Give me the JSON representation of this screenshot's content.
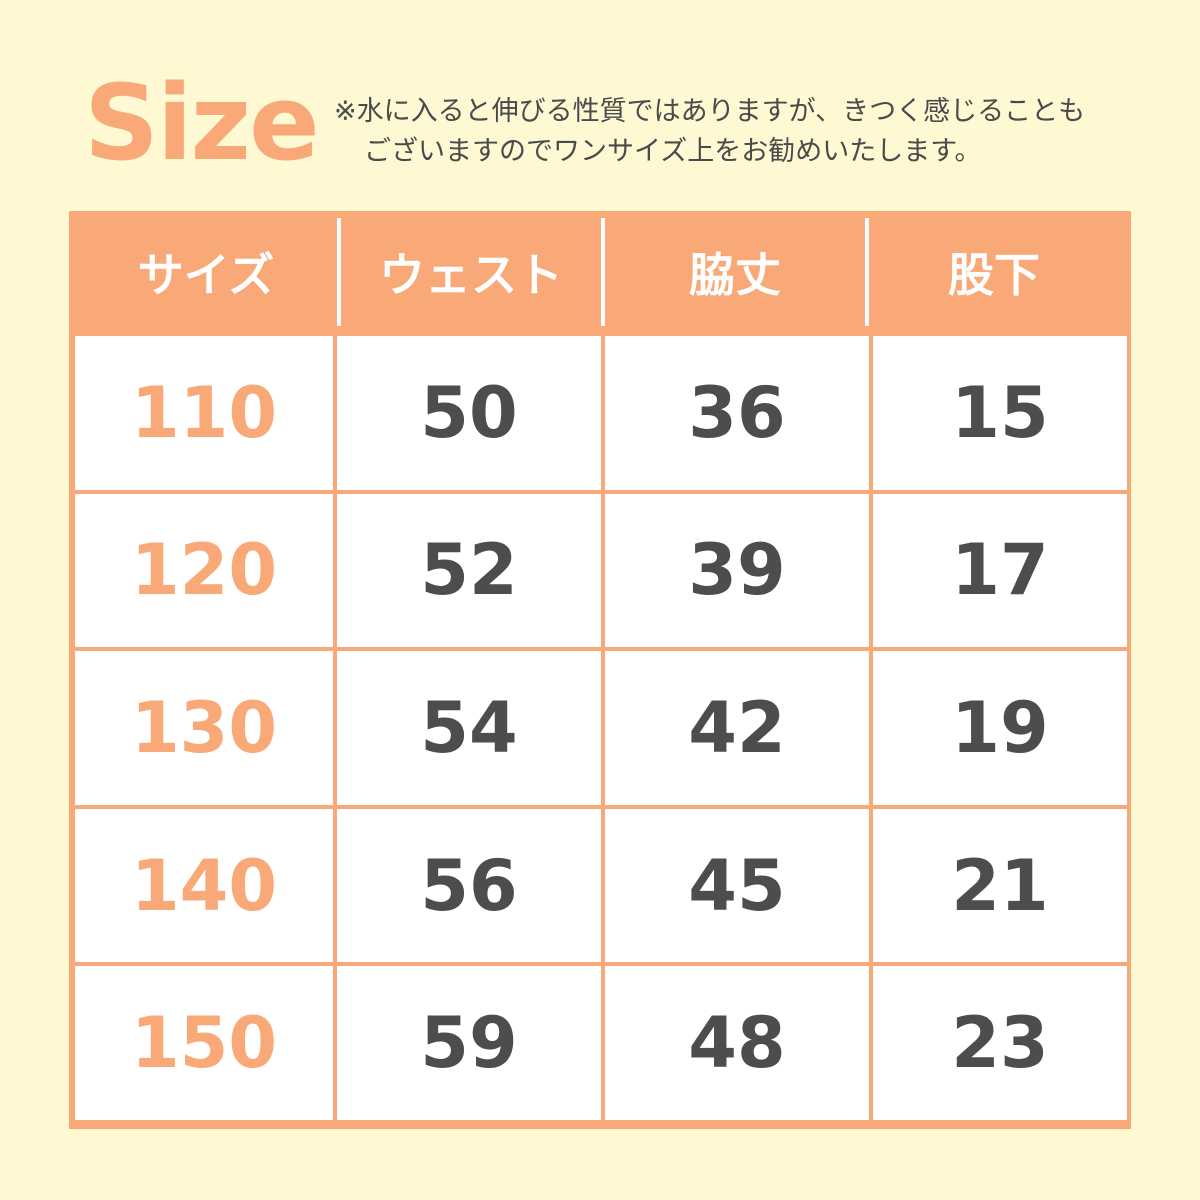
{
  "colors": {
    "accent": "#F9A877",
    "background": "#FEF9D3",
    "text": "#4d4d4d"
  },
  "title": "Size",
  "note": {
    "line1": "※水に入ると伸びる性質ではありますが、きつく感じることも",
    "line2": "ございますのでワンサイズ上をお勧めいたします。"
  },
  "chart_data": {
    "type": "table",
    "columns": [
      "サイズ",
      "ウェスト",
      "脇丈",
      "股下"
    ],
    "rows": [
      [
        "110",
        "50",
        "36",
        "15"
      ],
      [
        "120",
        "52",
        "39",
        "17"
      ],
      [
        "130",
        "54",
        "42",
        "19"
      ],
      [
        "140",
        "56",
        "45",
        "21"
      ],
      [
        "150",
        "59",
        "48",
        "23"
      ]
    ]
  }
}
